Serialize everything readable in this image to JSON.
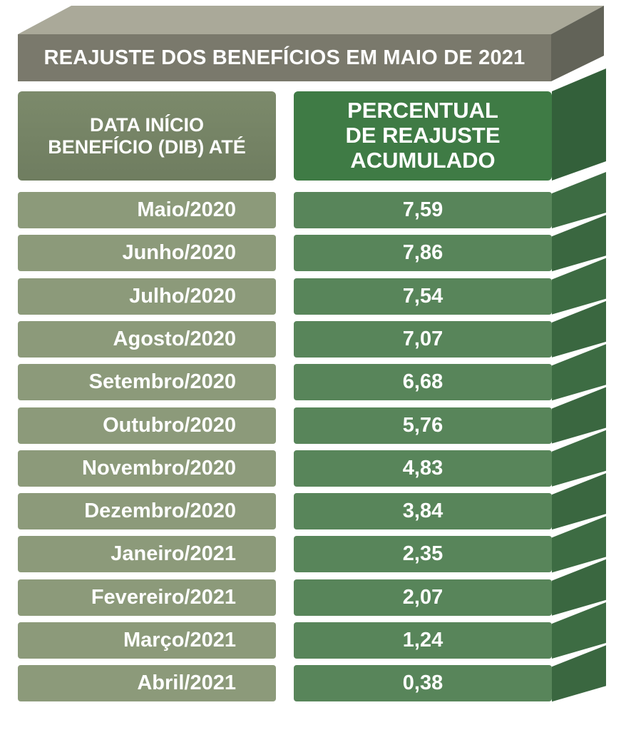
{
  "chart_data": {
    "type": "table",
    "title": "REAJUSTE DOS BENEFÍCIOS EM MAIO DE 2021",
    "columns": [
      [
        "DATA INÍCIO",
        "BENEFÍCIO (DIB) ATÉ"
      ],
      [
        "PERCENTUAL",
        "DE REAJUSTE",
        "ACUMULADO"
      ]
    ],
    "rows": [
      {
        "month": "Maio/2020",
        "value": "7,59"
      },
      {
        "month": "Junho/2020",
        "value": "7,86"
      },
      {
        "month": "Julho/2020",
        "value": "7,54"
      },
      {
        "month": "Agosto/2020",
        "value": "7,07"
      },
      {
        "month": "Setembro/2020",
        "value": "6,68"
      },
      {
        "month": "Outubro/2020",
        "value": "5,76"
      },
      {
        "month": "Novembro/2020",
        "value": "4,83"
      },
      {
        "month": "Dezembro/2020",
        "value": "3,84"
      },
      {
        "month": "Janeiro/2021",
        "value": "2,35"
      },
      {
        "month": "Fevereiro/2021",
        "value": "2,07"
      },
      {
        "month": "Março/2021",
        "value": "1,24"
      },
      {
        "month": "Abril/2021",
        "value": "0,38"
      }
    ]
  },
  "colors": {
    "title_bar": "#7a796c",
    "title_top_face": "#a9a998",
    "left_header": "#76846a",
    "right_header": "#3f7b45",
    "left_cell": "#8c9a7a",
    "right_cell": "#58855a",
    "side_face": "#3c6a41"
  }
}
